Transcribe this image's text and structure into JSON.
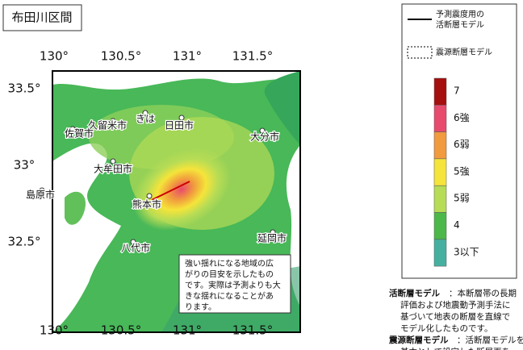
{
  "title": "布田川区間",
  "map": {
    "lon_labels": [
      "130°",
      "130.5°",
      "131°",
      "131.5°"
    ],
    "lat_labels": [
      "33.5°",
      "33°",
      "32.5°"
    ],
    "cities": [
      "久留米市",
      "佐賀市",
      "きは",
      "日田市",
      "大分市",
      "大牟田市",
      "島原市",
      "熊本市",
      "八代市",
      "延岡市"
    ],
    "note_lines": [
      "強い揺れになる地域の広",
      "がりの目安を示したもの",
      "です。実際は予測よりも大",
      "きな揺れになることがあ",
      "ります。"
    ]
  },
  "legend": {
    "fault_model": [
      "予測震度用の",
      "活断層モデル"
    ],
    "source_model": "震源断層モデル",
    "intensity": [
      {
        "label": "7",
        "color": "#a50f0f"
      },
      {
        "label": "6強",
        "color": "#e84a6e"
      },
      {
        "label": "6弱",
        "color": "#f19a3e"
      },
      {
        "label": "5強",
        "color": "#f5e43a"
      },
      {
        "label": "5弱",
        "color": "#b7dc55"
      },
      {
        "label": "4",
        "color": "#4cb84a"
      },
      {
        "label": "3以下",
        "color": "#46b0a0"
      }
    ]
  },
  "notes": [
    {
      "term": "活断層モデル",
      "lines": [
        "：本断層帯の長期",
        "評価および地震動予測手法に",
        "基づいて地表の断層を直線で",
        "モデル化したものです。"
      ]
    },
    {
      "term": "震源断層モデル",
      "lines": [
        "：活断層モデルを",
        "基本として設定した断層面を"
      ]
    }
  ]
}
